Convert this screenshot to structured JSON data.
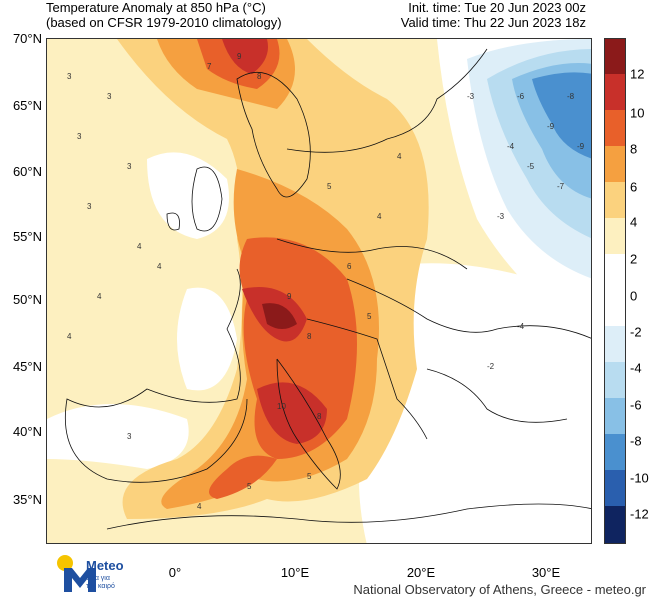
{
  "header": {
    "title_line1": "Temperature Anomaly at 850 hPa (°C)",
    "title_line2": "(based on CFSR 1979-2010 climatology)",
    "init_time": "Init. time: Tue 20 Jun 2023 00z",
    "valid_time": "Valid time: Thu 22 Jun 2023 18z"
  },
  "map": {
    "lat_labels": [
      "70°N",
      "65°N",
      "60°N",
      "55°N",
      "50°N",
      "45°N",
      "40°N",
      "35°N"
    ],
    "lon_labels": [
      "0°",
      "10°E",
      "20°E",
      "30°E"
    ],
    "extent": {
      "lon_min": -10,
      "lon_max": 35,
      "lat_min": 32,
      "lat_max": 70
    }
  },
  "colorbar": {
    "labels": [
      "12",
      "10",
      "8",
      "6",
      "4",
      "2",
      "0",
      "-2",
      "-4",
      "-6",
      "-8",
      "-10",
      "-12"
    ],
    "colors": [
      "#8b1a1a",
      "#c8302a",
      "#e8602a",
      "#f5a040",
      "#fbd27e",
      "#fdf0c0",
      "#ffffff",
      "#ddeef8",
      "#b8dcf0",
      "#88c0e6",
      "#4a90cf",
      "#2a5fae",
      "#1a3a80",
      "#0f2460"
    ]
  },
  "logo": {
    "name": "Meteo",
    "tagline_line1": "Όλα για",
    "tagline_line2": "τον καιρό"
  },
  "footer": {
    "credit": "National Observatory of Athens, Greece - meteo.gr"
  }
}
